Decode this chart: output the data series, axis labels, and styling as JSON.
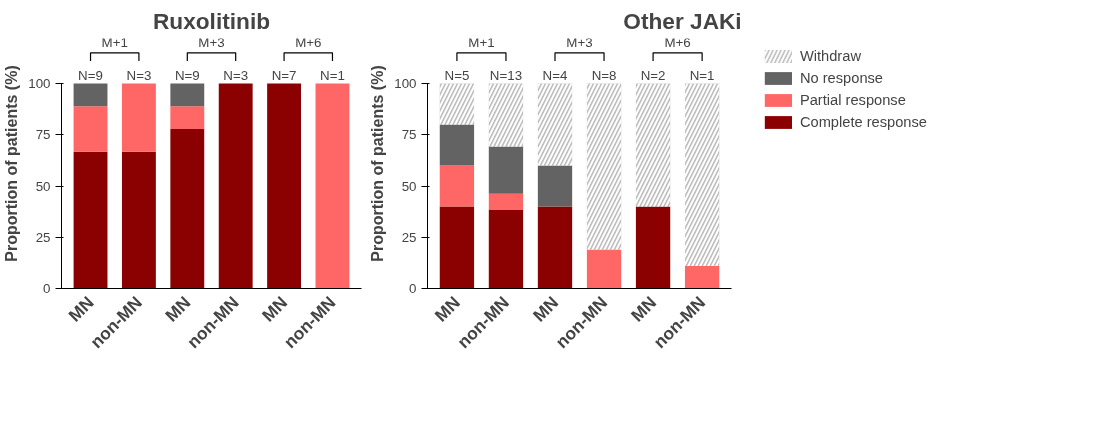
{
  "chart_data": [
    {
      "type": "bar",
      "title": "Ruxolitinib",
      "ylabel": "Proportion of patients (%)",
      "categories": [
        "MN",
        "non-MN",
        "MN",
        "non-MN",
        "MN",
        "non-MN"
      ],
      "stacked": true,
      "ylim": [
        0,
        100
      ],
      "yticks": [
        0,
        25,
        50,
        75,
        100
      ],
      "grid": false,
      "legend": false,
      "annotations": [
        "M+1",
        "M+3",
        "M+6",
        "N=9",
        "N=3",
        "N=9",
        "N=3",
        "N=7",
        "N=1"
      ],
      "series": [
        {
          "color": "#8b0000",
          "values": [
            66.7,
            66.7,
            77.8,
            100,
            100,
            0
          ]
        },
        {
          "color": "#ff6666",
          "values": [
            22.2,
            33.3,
            11.1,
            0,
            0,
            100
          ]
        },
        {
          "color": "#636363",
          "values": [
            11.1,
            0,
            11.1,
            0,
            0,
            0
          ]
        }
      ]
    },
    {
      "type": "bar",
      "title": "Other JAKi",
      "ylabel": "Proportion of patients (%)",
      "categories": [
        "MN",
        "non-MN",
        "MN",
        "non-MN",
        "MN",
        "non-MN"
      ],
      "stacked": true,
      "ylim": [
        0,
        100
      ],
      "yticks": [
        0,
        25,
        50,
        75,
        100
      ],
      "grid": false,
      "legend": "right",
      "annotations": [
        "M+1",
        "M+3",
        "M+6",
        "N=5",
        "N=13",
        "N=4",
        "N=8",
        "N=2",
        "N=1"
      ],
      "series": [
        {
          "name": "Complete response",
          "color": "#8b0000",
          "values": [
            40,
            38.5,
            40,
            0,
            40,
            0
          ]
        },
        {
          "name": "Partial response",
          "color": "#ff6666",
          "values": [
            20,
            7.7,
            0,
            19,
            0,
            11
          ]
        },
        {
          "name": "No response",
          "color": "#636363",
          "values": [
            20,
            23.1,
            20,
            0,
            0,
            0
          ]
        },
        {
          "name": "Withdraw",
          "color": "#bdbdbd",
          "values": [
            20,
            30.7,
            40,
            81,
            60,
            89
          ]
        }
      ]
    }
  ]
}
